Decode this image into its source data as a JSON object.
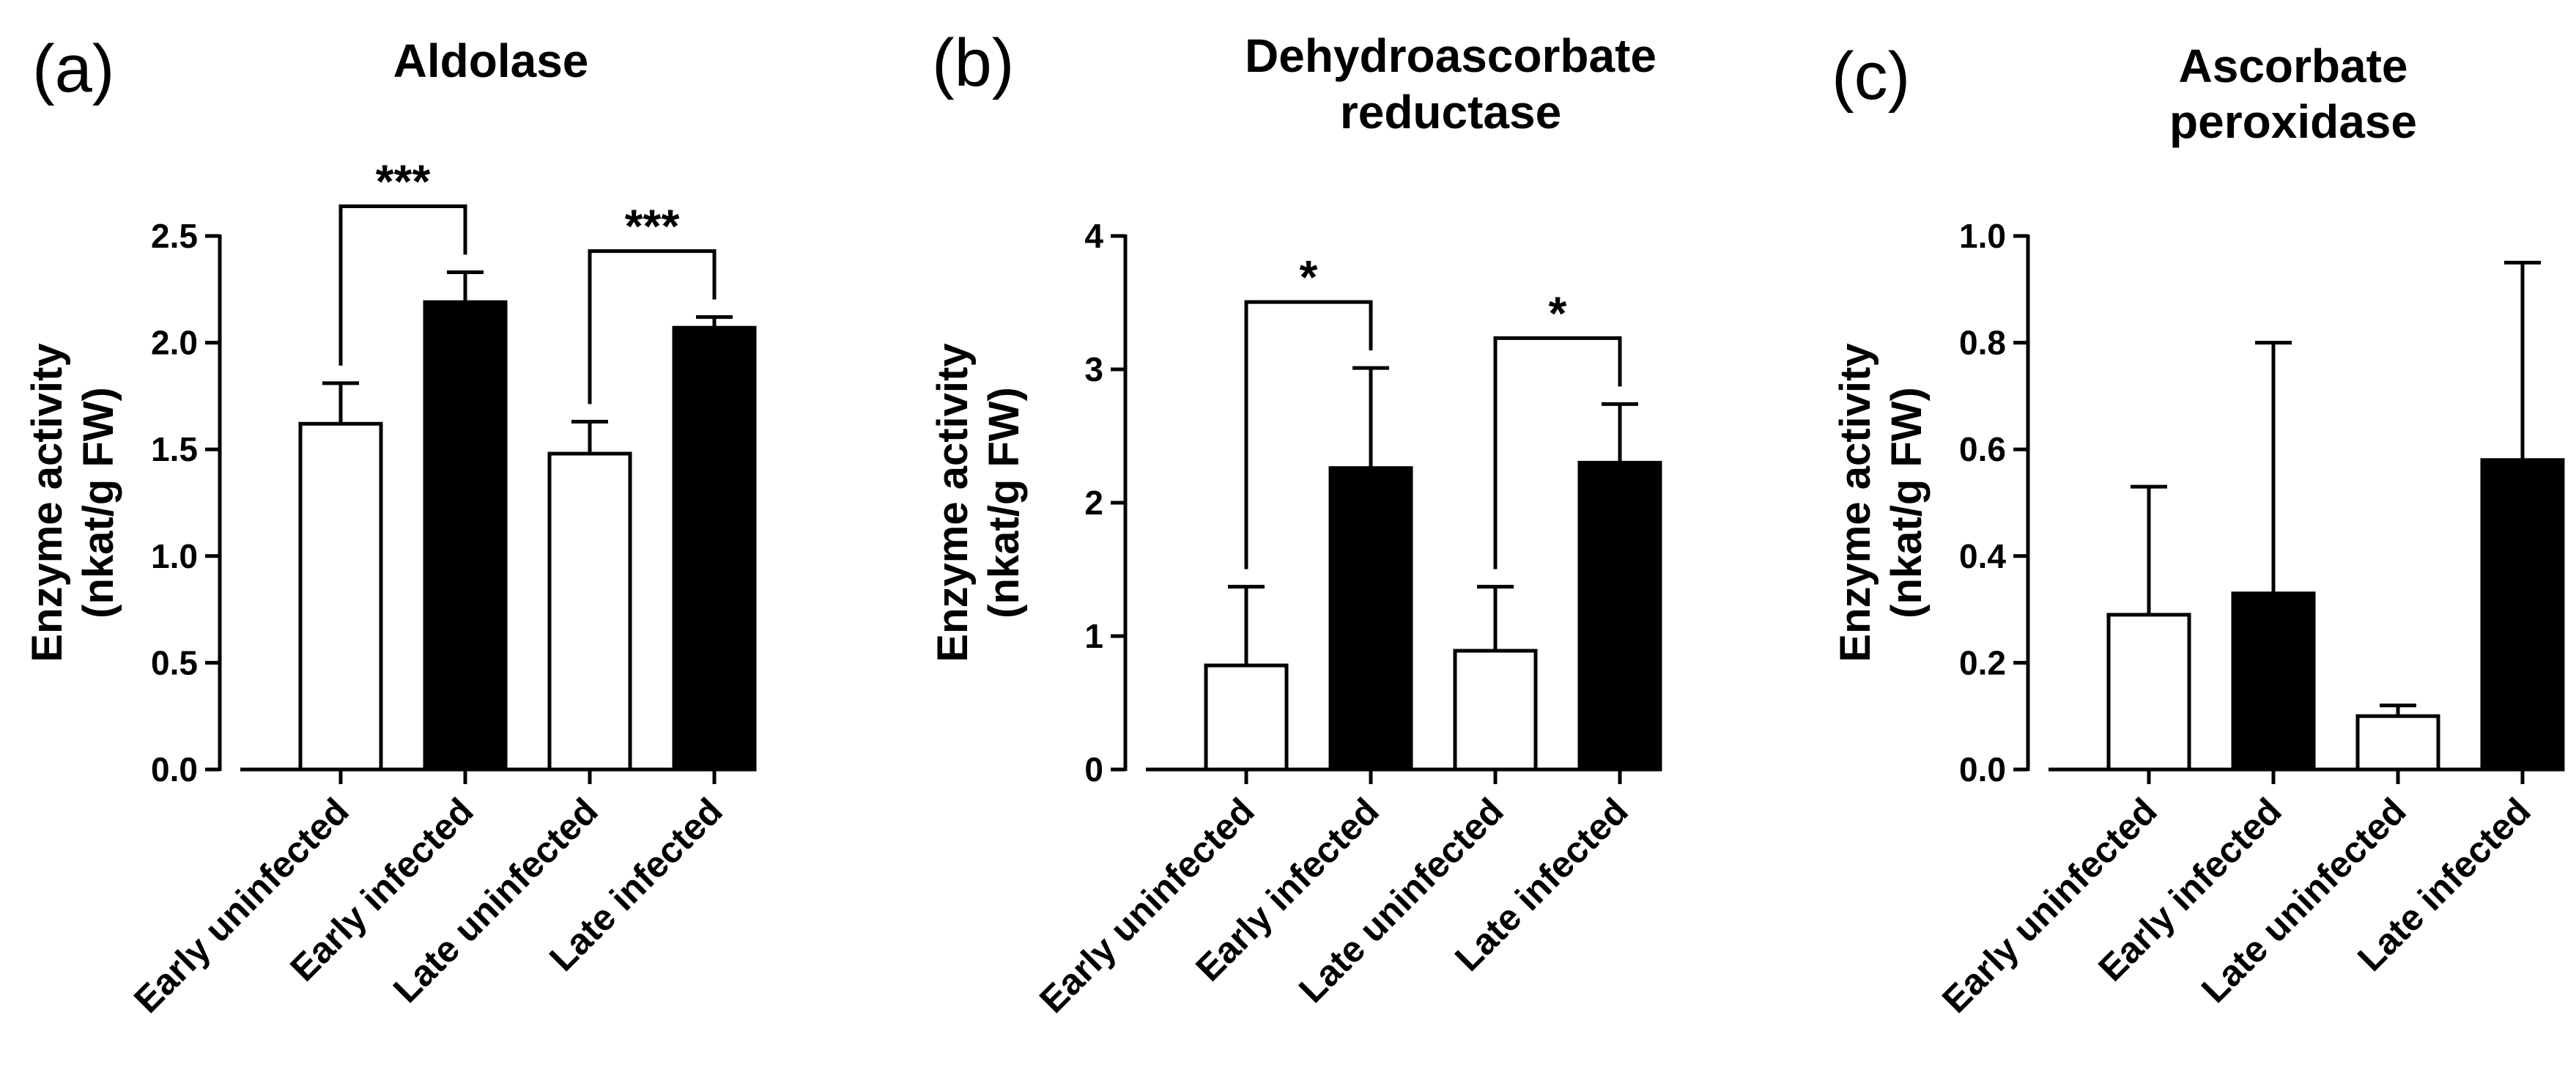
{
  "chart_data": [
    {
      "type": "bar",
      "panel_label": "(a)",
      "title": [
        "Aldolase"
      ],
      "ylabel": [
        "Enzyme activity",
        "(nkat/g FW)"
      ],
      "ylim": [
        0,
        2.5
      ],
      "yticks": [
        "0.0",
        "0.5",
        "1.0",
        "1.5",
        "2.0",
        "2.5"
      ],
      "categories": [
        "Early uninfected",
        "Early infected",
        "Late uninfected",
        "Late infected"
      ],
      "values": [
        1.62,
        2.19,
        1.48,
        2.07
      ],
      "errors": [
        0.19,
        0.14,
        0.15,
        0.05
      ],
      "bar_fill": [
        "#ffffff",
        "#000000",
        "#ffffff",
        "#000000"
      ],
      "significance": [
        {
          "from": 0,
          "to": 1,
          "label": "***"
        },
        {
          "from": 2,
          "to": 3,
          "label": "***"
        }
      ]
    },
    {
      "type": "bar",
      "panel_label": "(b)",
      "title": [
        "Dehydroascorbate",
        "reductase"
      ],
      "ylabel": [
        "Enzyme activity",
        "(nkat/g FW)"
      ],
      "ylim": [
        0,
        4
      ],
      "yticks": [
        "0",
        "1",
        "2",
        "3",
        "4"
      ],
      "categories": [
        "Early uninfected",
        "Early infected",
        "Late uninfected",
        "Late infected"
      ],
      "values": [
        0.78,
        2.26,
        0.89,
        2.3
      ],
      "errors": [
        0.59,
        0.75,
        0.48,
        0.44
      ],
      "bar_fill": [
        "#ffffff",
        "#000000",
        "#ffffff",
        "#000000"
      ],
      "significance": [
        {
          "from": 0,
          "to": 1,
          "label": "*"
        },
        {
          "from": 2,
          "to": 3,
          "label": "*"
        }
      ]
    },
    {
      "type": "bar",
      "panel_label": "(c)",
      "title": [
        "Ascorbate",
        "peroxidase"
      ],
      "ylabel": [
        "Enzyme activity",
        "(nkat/g FW)"
      ],
      "ylim": [
        0,
        1.0
      ],
      "yticks": [
        "0.0",
        "0.2",
        "0.4",
        "0.6",
        "0.8",
        "1.0"
      ],
      "categories": [
        "Early uninfected",
        "Early infected",
        "Late uninfected",
        "Late infected"
      ],
      "values": [
        0.29,
        0.33,
        0.1,
        0.58
      ],
      "errors": [
        0.24,
        0.47,
        0.02,
        0.37
      ],
      "bar_fill": [
        "#ffffff",
        "#000000",
        "#ffffff",
        "#000000"
      ],
      "significance": []
    }
  ]
}
